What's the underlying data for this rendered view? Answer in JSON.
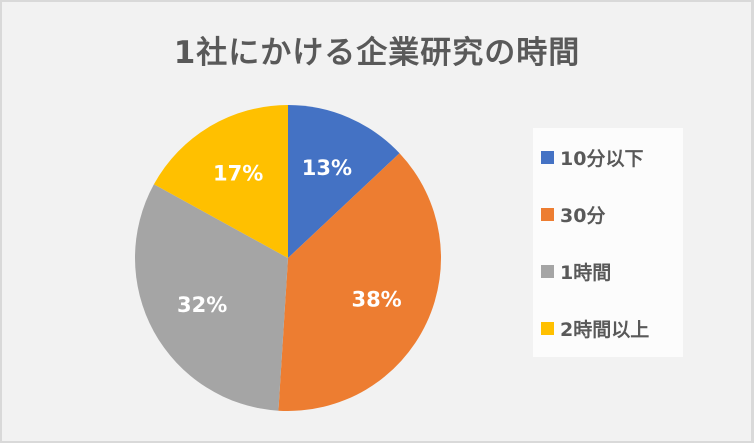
{
  "chart_data": {
    "type": "pie",
    "title": "1社にかける企業研究の時間",
    "categories": [
      "10分以下",
      "30分",
      "1時間",
      "2時間以上"
    ],
    "values": [
      13,
      38,
      32,
      17
    ],
    "unit": "%",
    "data_labels": [
      "13%",
      "38%",
      "32%",
      "17%"
    ],
    "colors": [
      "#4472c4",
      "#ed7d31",
      "#a5a5a5",
      "#ffc000"
    ],
    "start_angle_deg": 0,
    "direction": "clockwise",
    "legend_position": "right"
  },
  "title": "1社にかける企業研究の時間",
  "legend": {
    "items": [
      {
        "label": "10分以下",
        "color": "#4472c4"
      },
      {
        "label": "30分",
        "color": "#ed7d31"
      },
      {
        "label": "1時間",
        "color": "#a5a5a5"
      },
      {
        "label": "2時間以上",
        "color": "#ffc000"
      }
    ]
  },
  "labels": [
    "13%",
    "38%",
    "32%",
    "17%"
  ]
}
